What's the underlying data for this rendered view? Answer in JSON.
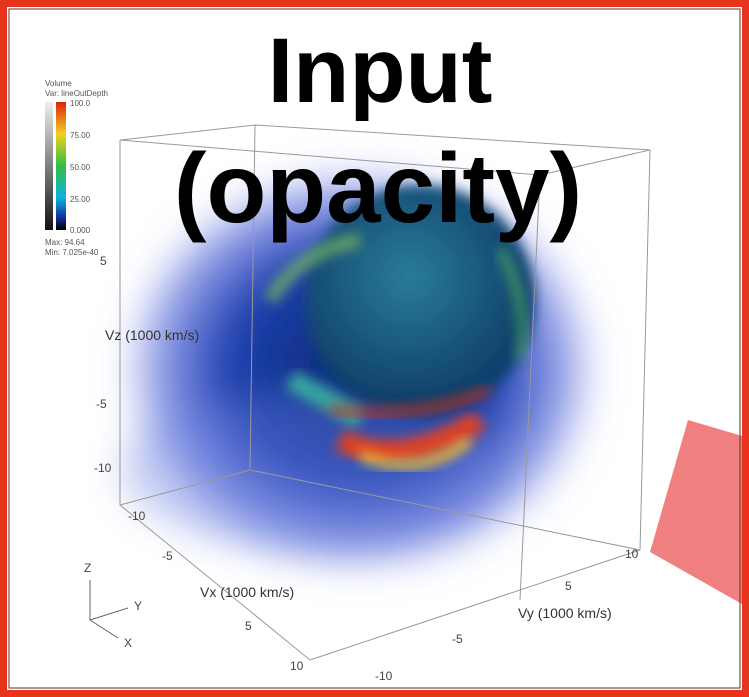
{
  "title": {
    "line1": "Input",
    "line2": "(opacity)"
  },
  "legend": {
    "heading": "Volume",
    "variable": "Var: lineOutDepth",
    "labels": [
      "100.0",
      "75.00",
      "50.00",
      "25.00",
      "0.000"
    ],
    "max": "Max: 94.64",
    "min": "Min: 7.025e-40"
  },
  "axes": {
    "vz": {
      "label": "Vz (1000 km/s)",
      "ticks": [
        "5",
        "-5",
        "-10"
      ]
    },
    "vx": {
      "label": "Vx (1000 km/s)",
      "ticks": [
        "-10",
        "-5",
        "5",
        "10"
      ]
    },
    "vy": {
      "label": "Vy (1000 km/s)",
      "ticks": [
        "-10",
        "-5",
        "5",
        "10"
      ]
    }
  },
  "triad": [
    "Z",
    "Y",
    "X"
  ]
}
